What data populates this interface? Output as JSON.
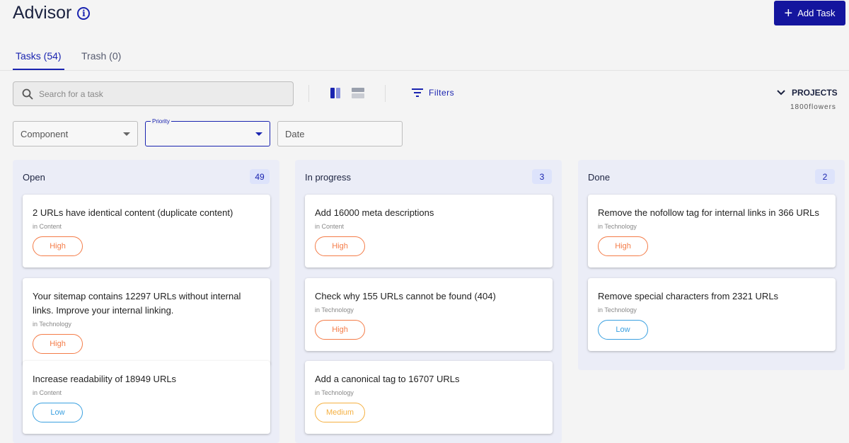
{
  "header": {
    "title": "Advisor",
    "add_task_label": "Add Task"
  },
  "tabs": [
    {
      "label": "Tasks (54)"
    },
    {
      "label": "Trash (0)"
    }
  ],
  "search": {
    "placeholder": "Search for a task"
  },
  "filters_label": "Filters",
  "projects": {
    "label": "PROJECTS",
    "value": "1800flowers"
  },
  "fields": {
    "component": "Component",
    "priority_label": "Priority",
    "priority_value": "",
    "date": "Date"
  },
  "colors": {
    "accent": "#1a24b0",
    "high": "#f47c48",
    "medium": "#f5b041",
    "low": "#3aa0e0"
  },
  "columns": [
    {
      "title": "Open",
      "count": "49",
      "cards": [
        {
          "title": "2 URLs have identical content (duplicate content)",
          "category": "in Content",
          "priority": "High"
        },
        {
          "title": "Your sitemap contains 12297 URLs without internal links. Improve your internal linking.",
          "category": "in Technology",
          "priority": "High"
        },
        {
          "title": "Increase readability of 18949 URLs",
          "category": "in Content",
          "priority": "Low"
        }
      ]
    },
    {
      "title": "In progress",
      "count": "3",
      "cards": [
        {
          "title": "Add 16000 meta descriptions",
          "category": "in Content",
          "priority": "High"
        },
        {
          "title": "Check why 155 URLs cannot be found (404)",
          "category": "in Technology",
          "priority": "High"
        },
        {
          "title": "Add a canonical tag to 16707 URLs",
          "category": "in Technology",
          "priority": "Medium"
        }
      ]
    },
    {
      "title": "Done",
      "count": "2",
      "cards": [
        {
          "title": "Remove the nofollow tag for internal links in 366 URLs",
          "category": "in Technology",
          "priority": "High"
        },
        {
          "title": "Remove special characters from 2321 URLs",
          "category": "in Technology",
          "priority": "Low"
        }
      ]
    }
  ]
}
